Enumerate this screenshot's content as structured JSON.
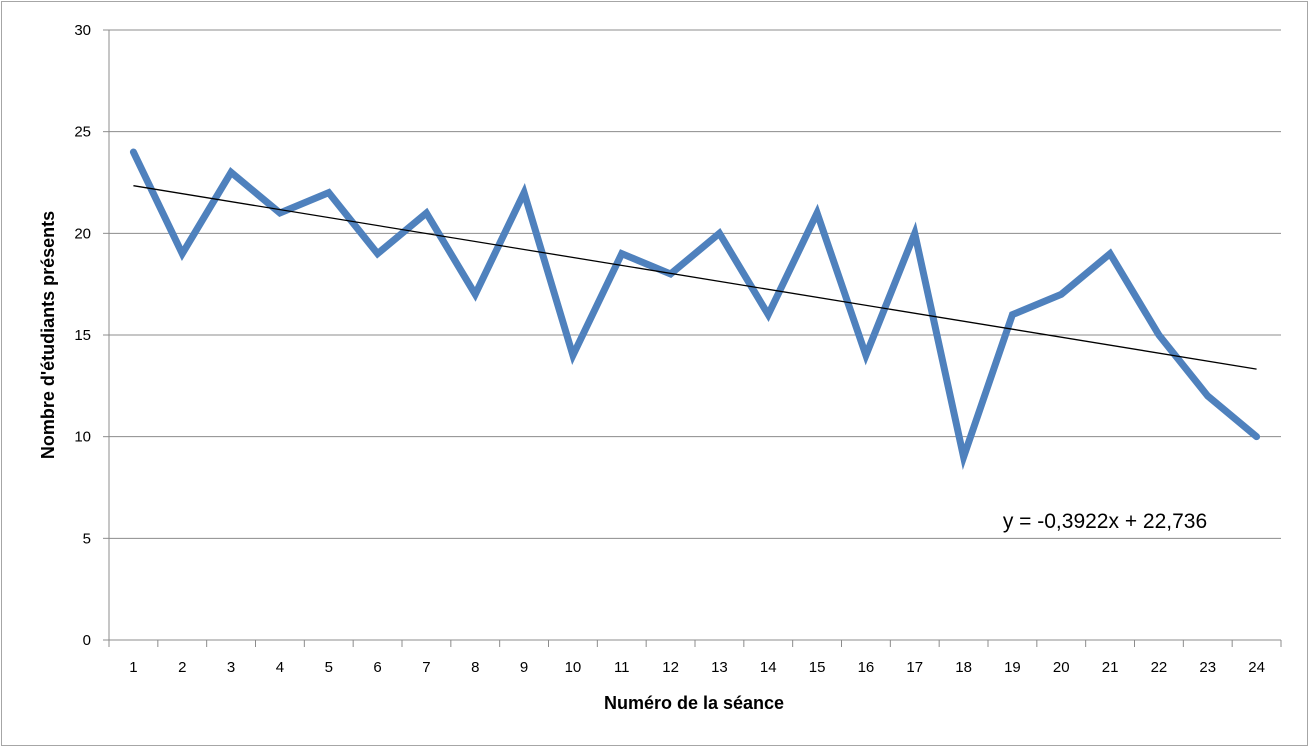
{
  "chart_data": {
    "type": "line",
    "title": "",
    "xlabel": "Numéro de la séance",
    "ylabel": "Nombre d'étudiants  présents",
    "categories": [
      "1",
      "2",
      "3",
      "4",
      "5",
      "6",
      "7",
      "8",
      "9",
      "10",
      "11",
      "12",
      "13",
      "14",
      "15",
      "16",
      "17",
      "18",
      "19",
      "20",
      "21",
      "22",
      "23",
      "24"
    ],
    "series": [
      {
        "values": [
          24,
          19,
          23,
          21,
          22,
          19,
          21,
          17,
          22,
          14,
          19,
          18,
          20,
          16,
          21,
          14,
          20,
          9,
          16,
          17,
          19,
          15,
          12,
          10
        ],
        "color": "#4f81bd"
      }
    ],
    "trendline": {
      "type": "linear",
      "slope": -0.3922,
      "intercept": 22.736,
      "color": "#000000",
      "equation_label": "y = -0,3922x + 22,736"
    },
    "y_ticks": [
      "0",
      "5",
      "10",
      "15",
      "20",
      "25",
      "30"
    ],
    "ylim": [
      0,
      30
    ],
    "grid": true,
    "legend": "none"
  }
}
